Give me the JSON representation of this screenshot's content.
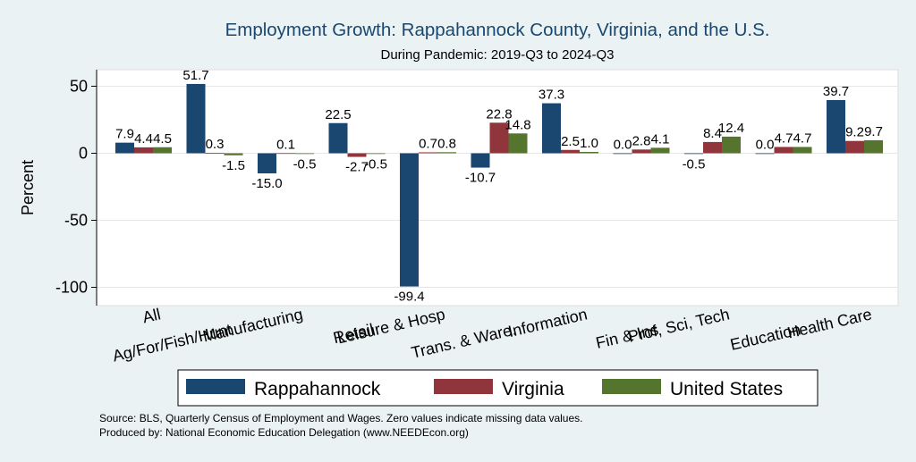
{
  "chart_data": {
    "type": "bar",
    "title": "Employment Growth: Rappahannock County, Virginia, and the U.S.",
    "subtitle": "During Pandemic: 2019-Q3 to 2024-Q3",
    "ylabel": "Percent",
    "xlabel": "",
    "ylim": [
      -105,
      60
    ],
    "yticks": [
      50,
      0,
      -50,
      -100
    ],
    "ytick_labels": [
      "50",
      "0",
      "-50",
      "-100"
    ],
    "grid": true,
    "legend_position": "bottom",
    "categories": [
      "All",
      "Ag/For/Fish/Hunt",
      "Manufacturing",
      "Retail",
      "Leisure & Hosp",
      "Trans. & Ware.",
      "Information",
      "Fin & Ins",
      "Prof, Sci, Tech",
      "Education",
      "Health Care"
    ],
    "series": [
      {
        "name": "Rappahannock",
        "color": "#1a476f",
        "values": [
          7.9,
          51.7,
          -15.0,
          22.5,
          -99.4,
          -10.7,
          37.3,
          0.0,
          -0.5,
          0.0,
          39.7
        ],
        "labels": [
          "7.9",
          "51.7",
          "-15.0",
          "22.5",
          "-99.4",
          "-10.7",
          "37.3",
          "0.0",
          "-0.5",
          "0.0",
          "39.7"
        ]
      },
      {
        "name": "Virginia",
        "color": "#90353b",
        "values": [
          4.4,
          0.3,
          0.1,
          -2.7,
          0.7,
          22.8,
          2.5,
          2.8,
          8.4,
          4.7,
          9.2
        ],
        "labels": [
          "4.4",
          "0.3",
          "0.1",
          "-2.7",
          "0.7",
          "22.8",
          "2.5",
          "2.8",
          "8.4",
          "4.7",
          "9.2"
        ]
      },
      {
        "name": "United States",
        "color": "#55752f",
        "values": [
          4.5,
          -1.5,
          -0.5,
          -0.5,
          0.8,
          14.8,
          1.0,
          4.1,
          12.4,
          4.7,
          9.7
        ],
        "labels": [
          "4.5",
          "-1.5",
          "-0.5",
          "-0.5",
          "0.8",
          "14.8",
          "1.0",
          "4.1",
          "12.4",
          "4.7",
          "9.7"
        ]
      }
    ]
  },
  "notes": {
    "source": "Source: BLS, Quarterly Census of Employment and Wages. Zero values indicate missing data values.",
    "produced_by": "Produced by: National Economic Education Delegation (www.NEEDEcon.org)"
  },
  "colors": {
    "background": "#eaf2f3",
    "plot_background": "#ffffff",
    "title": "#1a476f",
    "grid": "#e6e6e6"
  }
}
